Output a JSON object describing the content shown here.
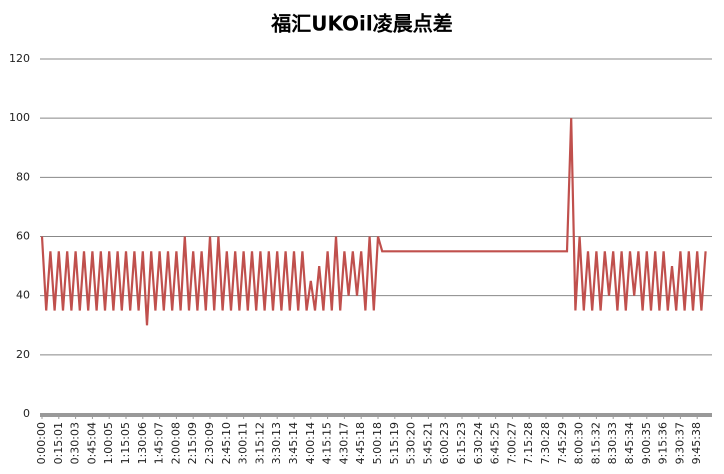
{
  "chart_data": {
    "type": "line",
    "title": "福汇UKOil凌晨点差",
    "categories": [
      "0:00:00",
      null,
      null,
      null,
      "0:15:01",
      null,
      null,
      null,
      "0:30:03",
      null,
      null,
      null,
      "0:45:04",
      null,
      null,
      null,
      "1:00:05",
      null,
      null,
      null,
      "1:15:05",
      null,
      null,
      null,
      "1:30:06",
      null,
      null,
      null,
      "1:45:07",
      null,
      null,
      null,
      "2:00:08",
      null,
      null,
      null,
      "2:15:09",
      null,
      null,
      null,
      "2:30:09",
      null,
      null,
      null,
      "2:45:10",
      null,
      null,
      null,
      "3:00:11",
      null,
      null,
      null,
      "3:15:12",
      null,
      null,
      null,
      "3:30:13",
      null,
      null,
      null,
      "3:45:14",
      null,
      null,
      null,
      "4:00:14",
      null,
      null,
      null,
      "4:15:15",
      null,
      null,
      null,
      "4:30:17",
      null,
      null,
      null,
      "4:45:18",
      null,
      null,
      null,
      "5:00:18",
      null,
      null,
      null,
      "5:15:19",
      null,
      null,
      null,
      "5:30:20",
      null,
      null,
      null,
      "5:45:21",
      null,
      null,
      null,
      "6:00:23",
      null,
      null,
      null,
      "6:15:23",
      null,
      null,
      null,
      "6:30:24",
      null,
      null,
      null,
      "6:45:25",
      null,
      null,
      null,
      "7:00:27",
      null,
      null,
      null,
      "7:15:28",
      null,
      null,
      null,
      "7:30:28",
      null,
      null,
      null,
      "7:45:29",
      null,
      null,
      null,
      "8:00:30",
      null,
      null,
      null,
      "8:15:32",
      null,
      null,
      null,
      "8:30:33",
      null,
      null,
      null,
      "8:45:34",
      null,
      null,
      null,
      "9:00:35",
      null,
      null,
      null,
      "9:15:36",
      null,
      null,
      null,
      "9:30:37",
      null,
      null,
      null,
      "9:45:38",
      null,
      null
    ],
    "values": [
      60,
      35,
      55,
      35,
      55,
      35,
      55,
      35,
      55,
      35,
      55,
      35,
      55,
      35,
      55,
      35,
      55,
      35,
      55,
      35,
      55,
      35,
      55,
      35,
      55,
      30,
      55,
      35,
      55,
      35,
      55,
      35,
      55,
      35,
      60,
      35,
      55,
      35,
      55,
      35,
      60,
      35,
      60,
      35,
      55,
      35,
      55,
      35,
      55,
      35,
      55,
      35,
      55,
      35,
      55,
      35,
      55,
      35,
      55,
      35,
      55,
      35,
      55,
      35,
      45,
      35,
      50,
      35,
      55,
      35,
      60,
      35,
      55,
      40,
      55,
      40,
      55,
      35,
      60,
      35,
      60,
      55,
      55,
      55,
      55,
      55,
      55,
      55,
      55,
      55,
      55,
      55,
      55,
      55,
      55,
      55,
      55,
      55,
      55,
      55,
      55,
      55,
      55,
      55,
      55,
      55,
      55,
      55,
      55,
      55,
      55,
      55,
      55,
      55,
      55,
      55,
      55,
      55,
      55,
      55,
      55,
      55,
      55,
      55,
      55,
      55,
      100,
      35,
      60,
      35,
      55,
      35,
      55,
      35,
      55,
      40,
      55,
      35,
      55,
      35,
      55,
      40,
      55,
      35,
      55,
      35,
      55,
      35,
      55,
      35,
      50,
      35,
      55,
      35,
      55,
      35,
      55,
      35,
      55
    ],
    "color": "#c0504d",
    "ylim": [
      0,
      120
    ],
    "yticks": [
      0,
      20,
      40,
      60,
      80,
      100,
      120
    ],
    "grid": true
  }
}
